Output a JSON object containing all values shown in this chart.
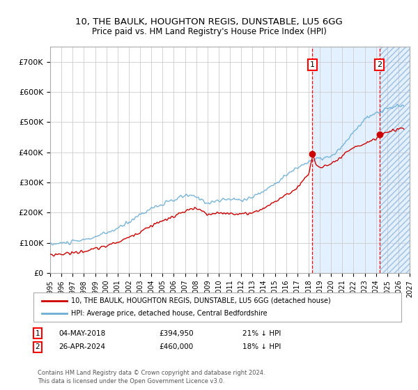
{
  "title": "10, THE BAULK, HOUGHTON REGIS, DUNSTABLE, LU5 6GG",
  "subtitle": "Price paid vs. HM Land Registry's House Price Index (HPI)",
  "ylim": [
    0,
    750000
  ],
  "yticks": [
    0,
    100000,
    200000,
    300000,
    400000,
    500000,
    600000,
    700000
  ],
  "ytick_labels": [
    "£0",
    "£100K",
    "£200K",
    "£300K",
    "£400K",
    "£500K",
    "£600K",
    "£700K"
  ],
  "x_start_year": 1995,
  "x_end_year": 2027,
  "xtick_years": [
    1995,
    1996,
    1997,
    1998,
    1999,
    2000,
    2001,
    2002,
    2003,
    2004,
    2005,
    2006,
    2007,
    2008,
    2009,
    2010,
    2011,
    2012,
    2013,
    2014,
    2015,
    2016,
    2017,
    2018,
    2019,
    2020,
    2021,
    2022,
    2023,
    2024,
    2025,
    2026,
    2027
  ],
  "hpi_color": "#6baed6",
  "price_color": "#cc0000",
  "marker1_date": 2018.34,
  "marker1_price": 394950,
  "marker2_date": 2024.32,
  "marker2_price": 460000,
  "shaded_region_start": 2018.34,
  "shaded_region_end": 2027.0,
  "hatched_region_start": 2024.32,
  "hatched_region_end": 2027.0,
  "legend_line1": "10, THE BAULK, HOUGHTON REGIS, DUNSTABLE, LU5 6GG (detached house)",
  "legend_line2": "HPI: Average price, detached house, Central Bedfordshire",
  "ann1_date": "04-MAY-2018",
  "ann1_price": "£394,950",
  "ann1_pct": "21% ↓ HPI",
  "ann2_date": "26-APR-2024",
  "ann2_price": "£460,000",
  "ann2_pct": "18% ↓ HPI",
  "footnote": "Contains HM Land Registry data © Crown copyright and database right 2024.\nThis data is licensed under the Open Government Licence v3.0.",
  "background_color": "#ffffff",
  "grid_color": "#cccccc"
}
